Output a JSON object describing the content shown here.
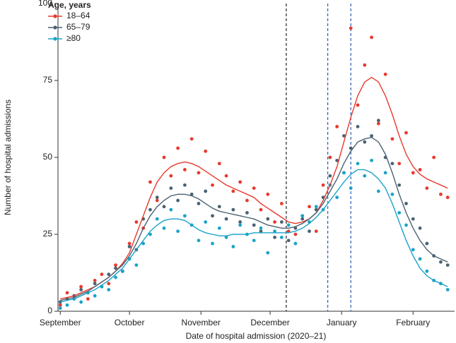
{
  "chart_data": {
    "type": "scatter",
    "x_label": "Date of hospital admission (2020–21)",
    "y_label": "Number of hospital admissions",
    "legend_title": "Age, years",
    "legend_position": "upper left",
    "xlim": [
      -1,
      171
    ],
    "xticks": [
      {
        "value": 0,
        "label": "September"
      },
      {
        "value": 30,
        "label": "October"
      },
      {
        "value": 61,
        "label": "November"
      },
      {
        "value": 91,
        "label": "December"
      },
      {
        "value": 122,
        "label": "January"
      },
      {
        "value": 153,
        "label": "February"
      }
    ],
    "ylim": [
      0,
      100
    ],
    "yticks": [
      0,
      25,
      50,
      75,
      100
    ],
    "reference_lines": [
      {
        "x": 98,
        "color": "#222222"
      },
      {
        "x": 116,
        "color": "#2a5db0"
      },
      {
        "x": 126,
        "color": "#2a5db0"
      }
    ],
    "x": [
      0,
      3,
      6,
      9,
      12,
      15,
      18,
      21,
      24,
      27,
      30,
      33,
      36,
      39,
      42,
      45,
      48,
      51,
      54,
      57,
      60,
      63,
      66,
      69,
      72,
      75,
      78,
      81,
      84,
      87,
      90,
      93,
      96,
      99,
      102,
      105,
      108,
      111,
      114,
      117,
      120,
      123,
      126,
      129,
      132,
      135,
      138,
      141,
      144,
      147,
      150,
      153,
      156,
      159,
      162,
      165,
      168
    ],
    "series": [
      {
        "name": "18–64",
        "color": "#e8392e",
        "values": [
          2,
          6,
          5,
          8,
          4,
          10,
          12,
          9,
          15,
          13,
          22,
          29,
          27,
          42,
          36,
          50,
          44,
          53,
          46,
          56,
          45,
          52,
          41,
          48,
          44,
          39,
          42,
          36,
          40,
          33,
          38,
          29,
          35,
          26,
          25,
          31,
          34,
          26,
          41,
          50,
          60,
          45,
          92,
          67,
          80,
          89,
          61,
          77,
          56,
          48,
          58,
          45,
          46,
          40,
          50,
          38,
          37
        ],
        "trend": [
          4,
          4.5,
          5,
          6,
          7,
          8,
          9.5,
          11,
          13,
          15.5,
          19,
          25,
          31,
          37,
          42,
          45,
          47,
          48,
          48.5,
          48,
          47,
          45.5,
          44,
          42.5,
          41,
          40,
          39,
          38,
          37,
          35,
          33.5,
          32,
          30.5,
          29,
          28.5,
          29,
          30,
          32,
          36,
          41,
          47,
          55,
          63,
          70,
          74.5,
          76,
          74.5,
          70,
          64,
          57,
          51,
          47,
          44.5,
          43,
          42,
          41,
          40
        ]
      },
      {
        "name": "65–79",
        "color": "#4a6272",
        "values": [
          3,
          4,
          5,
          7,
          6,
          9,
          8,
          12,
          14,
          13,
          21,
          20,
          30,
          33,
          37,
          34,
          40,
          36,
          41,
          38,
          35,
          39,
          31,
          34,
          30,
          33,
          29,
          32,
          28,
          26,
          30,
          24,
          29,
          23,
          27,
          30,
          26,
          33,
          37,
          44,
          49,
          57,
          53,
          60,
          55,
          57,
          62,
          50,
          48,
          41,
          35,
          30,
          27,
          22,
          18,
          16,
          15
        ],
        "trend": [
          3.5,
          4,
          4.5,
          5.5,
          6.5,
          8,
          9.5,
          11,
          13,
          15,
          18,
          22,
          27,
          31,
          34,
          36,
          37.5,
          38,
          38,
          37.5,
          36.5,
          35,
          33.5,
          32.5,
          32,
          31.5,
          31,
          30.5,
          30,
          29,
          28,
          27.5,
          27,
          27,
          27.5,
          28.5,
          30,
          32,
          35,
          39,
          43,
          48,
          52,
          55,
          56,
          56.5,
          55,
          51,
          45,
          38,
          32,
          27,
          23,
          20,
          18,
          17,
          16
        ]
      },
      {
        "name": "≥80",
        "color": "#1aa3c8",
        "values": [
          1,
          2,
          4,
          3,
          6,
          5,
          8,
          7,
          11,
          13,
          17,
          15,
          22,
          25,
          30,
          27,
          33,
          26,
          31,
          28,
          23,
          29,
          22,
          27,
          24,
          21,
          28,
          25,
          23,
          27,
          19,
          26,
          24,
          28,
          22,
          31,
          29,
          34,
          33,
          41,
          37,
          45,
          40,
          48,
          44,
          49,
          39,
          45,
          38,
          32,
          28,
          20,
          17,
          13,
          10,
          9,
          7
        ],
        "trend": [
          3,
          3.5,
          4,
          5,
          6,
          7,
          8.5,
          10,
          12,
          14,
          17,
          20,
          23,
          26,
          28,
          29.5,
          30,
          30,
          29.5,
          28,
          26.5,
          25.5,
          25,
          24.5,
          24.5,
          25,
          25,
          25,
          25.5,
          25.5,
          25.5,
          25.5,
          25.5,
          25.5,
          26,
          27,
          28.5,
          30.5,
          33,
          36,
          39,
          42,
          44.5,
          46,
          46,
          45,
          43,
          40,
          35,
          29,
          23,
          18,
          14,
          11.5,
          10,
          9,
          8
        ]
      }
    ]
  }
}
